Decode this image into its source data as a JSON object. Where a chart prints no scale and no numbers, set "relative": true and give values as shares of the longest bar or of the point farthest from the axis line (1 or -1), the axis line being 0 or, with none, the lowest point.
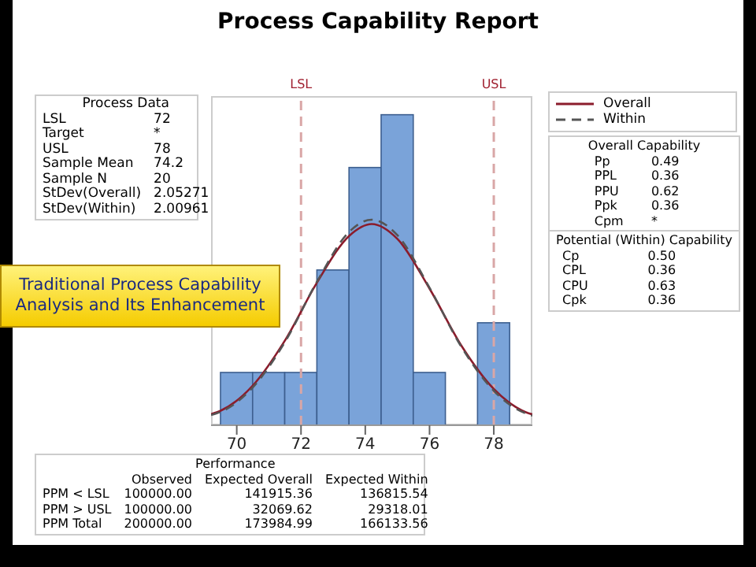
{
  "chart_data": {
    "type": "histogram",
    "title": "Process Capability Report",
    "bins": [
      69.5,
      70.5,
      71.5,
      72.5,
      73.5,
      74.5,
      75.5,
      76.5,
      77.5,
      78.5
    ],
    "values": [
      0.17,
      0.17,
      0.17,
      0.5,
      0.83,
      1,
      0.17,
      0,
      0.33
    ],
    "color": "#7aa3d9",
    "relative": true,
    "xlim": [
      69.2,
      79.2
    ],
    "xticks": [
      70,
      72,
      74,
      76,
      78
    ],
    "series": [
      {
        "name": "Overall",
        "type": "line",
        "color": "#8b1c2c",
        "line_style": "solid",
        "x": [
          69.2,
          69.5,
          70.5,
          71.5,
          72.5,
          73.5,
          74.2,
          75,
          76,
          77,
          78,
          79,
          79.2
        ],
        "values": [
          0.036,
          0.047,
          0.128,
          0.273,
          0.46,
          0.61,
          0.648,
          0.6,
          0.44,
          0.255,
          0.117,
          0.042,
          0.035
        ]
      },
      {
        "name": "Within",
        "type": "line",
        "color": "#555555",
        "line_style": "dashed",
        "x": [
          69.2,
          69.5,
          70.5,
          71.5,
          72.5,
          73.5,
          74.2,
          75,
          76,
          77,
          78,
          79,
          79.2
        ],
        "values": [
          0.033,
          0.043,
          0.122,
          0.268,
          0.463,
          0.623,
          0.662,
          0.612,
          0.443,
          0.251,
          0.111,
          0.038,
          0.031
        ]
      }
    ],
    "ref_lines": [
      {
        "axis": "x",
        "value": 72,
        "label": "LSL",
        "color": "#d9a6a6",
        "line_style": "dashed"
      },
      {
        "axis": "x",
        "value": 78,
        "label": "USL",
        "color": "#d9a6a6",
        "line_style": "dashed"
      }
    ],
    "legend": "top right",
    "annotations": [
      "Process Data\nLSL\t72\nTarget\t*\nUSL\t78\nSample Mean\t74.2\nSample N\t20\nStDev(Overall)\t2.05271\nStDev(Within)\t2.00961",
      "Overall Capability\nPp\t0.49\nPPL\t0.36\nPPU\t0.62\nPpk\t0.36\nCpm\t*",
      "Potential (Within) Capability\nCp\t0.50\nCPL\t0.36\nCPU\t0.63\nCpk\t0.36",
      "Performance\n\tObserved\tExpected Overall\tExpected Within\nPPM < LSL\t100000.00\t141915.36\t136815.54\nPPM > USL\t100000.00\t32069.62\t29318.01\nPPM Total\t200000.00\t173984.99\t166133.56",
      "Traditional Process Capability\nAnalysis and Its Enhancement"
    ]
  }
}
